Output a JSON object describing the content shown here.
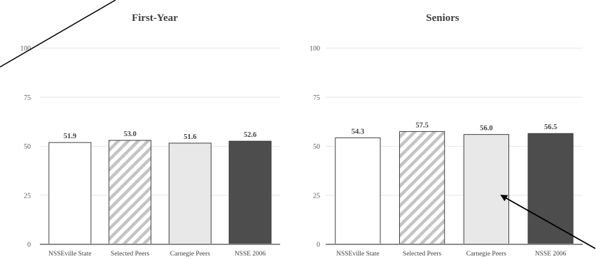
{
  "chart_data": [
    {
      "type": "bar",
      "title": "First-Year",
      "categories": [
        "NSSEville State",
        "Selected Peers",
        "Carnegie Peers",
        "NSSE 2006"
      ],
      "values": [
        51.9,
        53.0,
        51.6,
        52.6
      ],
      "value_labels": [
        "51.9",
        "53.0",
        "51.6",
        "52.6"
      ],
      "ylim": [
        0,
        100
      ],
      "yticks": [
        0,
        25,
        50,
        75,
        100
      ],
      "grid": true,
      "bar_styles": [
        "white",
        "hatched-gray",
        "light-gray",
        "dark-gray"
      ]
    },
    {
      "type": "bar",
      "title": "Seniors",
      "categories": [
        "NSSEville State",
        "Selected Peers",
        "Carnegie Peers",
        "NSSE 2006"
      ],
      "values": [
        54.3,
        57.5,
        56.0,
        56.5
      ],
      "value_labels": [
        "54.3",
        "57.5",
        "56.0",
        "56.5"
      ],
      "ylim": [
        0,
        100
      ],
      "yticks": [
        0,
        25,
        50,
        75,
        100
      ],
      "grid": true,
      "bar_styles": [
        "white",
        "hatched-gray",
        "light-gray",
        "dark-gray"
      ]
    }
  ],
  "colors": {
    "white_fill": "#ffffff",
    "light_gray_fill": "#e8e8e8",
    "dark_gray_fill": "#4d4d4d",
    "hatch_stroke": "#c4c4c4",
    "bar_outline": "#404040",
    "grid": "#e6e6e6",
    "axis": "#8c8c8c",
    "arrow": "#000000"
  }
}
